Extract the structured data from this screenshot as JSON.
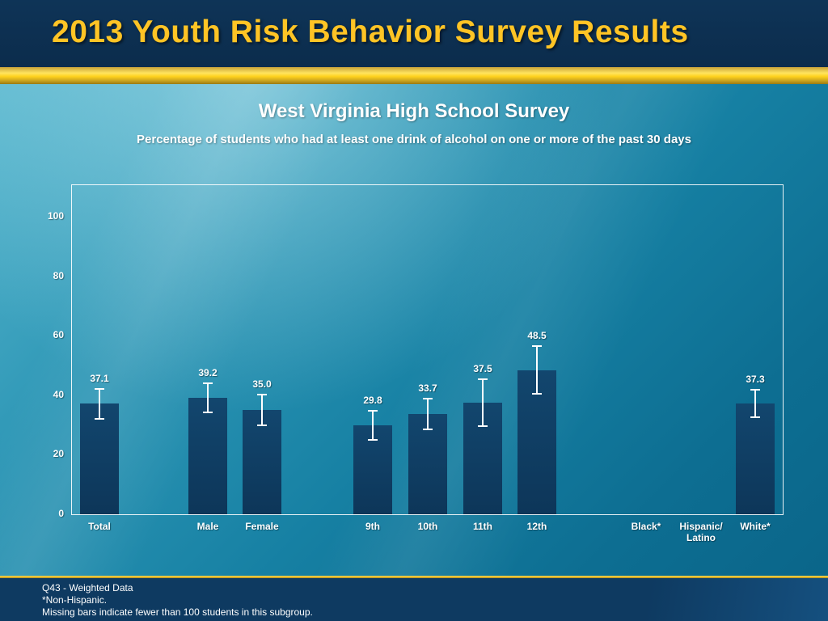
{
  "header": {
    "title": "2013 Youth Risk Behavior Survey Results"
  },
  "chart": {
    "title": "West Virginia High School Survey",
    "subtitle": "Percentage of students who had at least one drink of alcohol on one or more of the past 30 days"
  },
  "chart_data": {
    "type": "bar",
    "title": "West Virginia High School Survey",
    "subtitle": "Percentage of students who had at least one drink of alcohol on one or more of the past 30 days",
    "categories": [
      "Total",
      "Male",
      "Female",
      "9th",
      "10th",
      "11th",
      "12th",
      "Black*",
      "Hispanic/\nLatino",
      "White*"
    ],
    "values": [
      37.1,
      39.2,
      35.0,
      29.8,
      33.7,
      37.5,
      48.5,
      null,
      null,
      37.3
    ],
    "error_bars": [
      5.4,
      5.2,
      5.5,
      5.2,
      5.5,
      8.2,
      8.3,
      null,
      null,
      4.9
    ],
    "missing_categories": [
      "Black*",
      "Hispanic/Latino"
    ],
    "yticks": [
      0,
      20,
      40,
      60,
      80,
      100
    ],
    "ylim": [
      0,
      100
    ],
    "xlabel": "",
    "ylabel": "",
    "grid": "off",
    "legend": "none",
    "bar_color": "#0d3a5e",
    "note": "Missing bars indicate fewer than 100 students in this subgroup."
  },
  "footer": {
    "line1": "Q43 - Weighted Data",
    "line2": "*Non-Hispanic.",
    "line3": "Missing bars indicate fewer than 100 students in this subgroup."
  },
  "colors": {
    "header_bg": "#0c2c4c",
    "title_gold": "#ffc425",
    "bar_navy": "#0d3a5e",
    "background_teal": "#1680a3",
    "text_white": "#ffffff"
  }
}
